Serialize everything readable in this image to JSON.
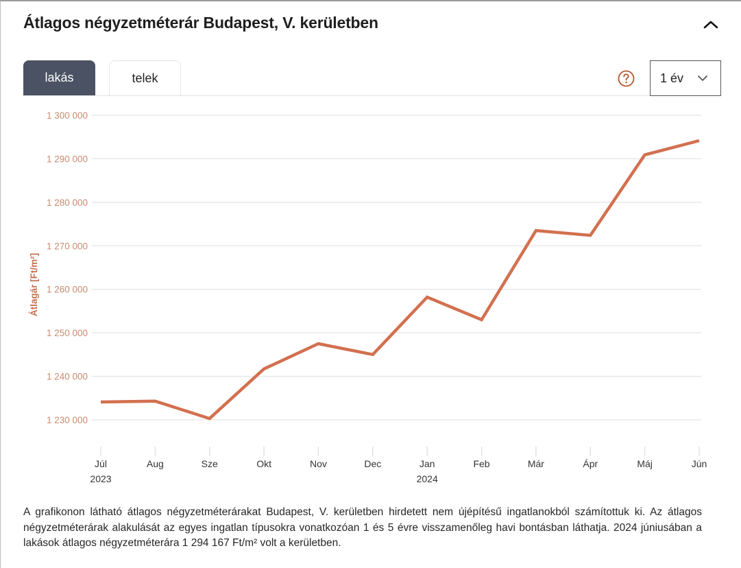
{
  "header": {
    "title": "Átlagos négyzetméterár Budapest, V. kerületben",
    "collapse_icon": "chevron-up-icon"
  },
  "tabs": [
    {
      "label": "lakás",
      "active": true
    },
    {
      "label": "telek",
      "active": false
    }
  ],
  "controls": {
    "help_icon": "question-circle-icon",
    "period_select": {
      "value": "1 év",
      "icon": "chevron-down-icon"
    }
  },
  "colors": {
    "accent": "#d2704f",
    "axis_text": "#c98a6f",
    "tab_active_bg": "#4a5263",
    "help_icon": "#b5552f",
    "grid": "#e8e8e8"
  },
  "chart_data": {
    "type": "line",
    "title": "",
    "xlabel": "",
    "ylabel": "Átlagár [Ft/m²]",
    "categories": [
      "Júl",
      "Aug",
      "Sze",
      "Okt",
      "Nov",
      "Dec",
      "Jan",
      "Feb",
      "Már",
      "Ápr",
      "Máj",
      "Jún"
    ],
    "year_labels": {
      "0": "2023",
      "6": "2024"
    },
    "y_ticks": [
      1230000,
      1240000,
      1250000,
      1260000,
      1270000,
      1280000,
      1290000,
      1300000
    ],
    "y_tick_labels": [
      "1 230 000",
      "1 240 000",
      "1 250 000",
      "1 260 000",
      "1 270 000",
      "1 280 000",
      "1 290 000",
      "1 300 000"
    ],
    "ylim": [
      1230000,
      1300000
    ],
    "grid": true,
    "series": [
      {
        "name": "lakás",
        "values": [
          1234100,
          1234300,
          1230300,
          1241700,
          1247500,
          1245000,
          1258200,
          1253000,
          1273500,
          1272400,
          1290900,
          1294167
        ]
      }
    ]
  },
  "footnote": "A grafikonon látható átlagos négyzetméterárakat Budapest, V. kerületben hirdetett nem újépítésű ingatlanokból számítottuk ki. Az átlagos négyzetméterárak alakulását az egyes ingatlan típusokra vonatkozóan 1 és 5 évre visszamenőleg havi bontásban láthatja. 2024 júniusában a lakások átlagos négyzetméterára 1 294 167 Ft/m² volt a kerületben."
}
